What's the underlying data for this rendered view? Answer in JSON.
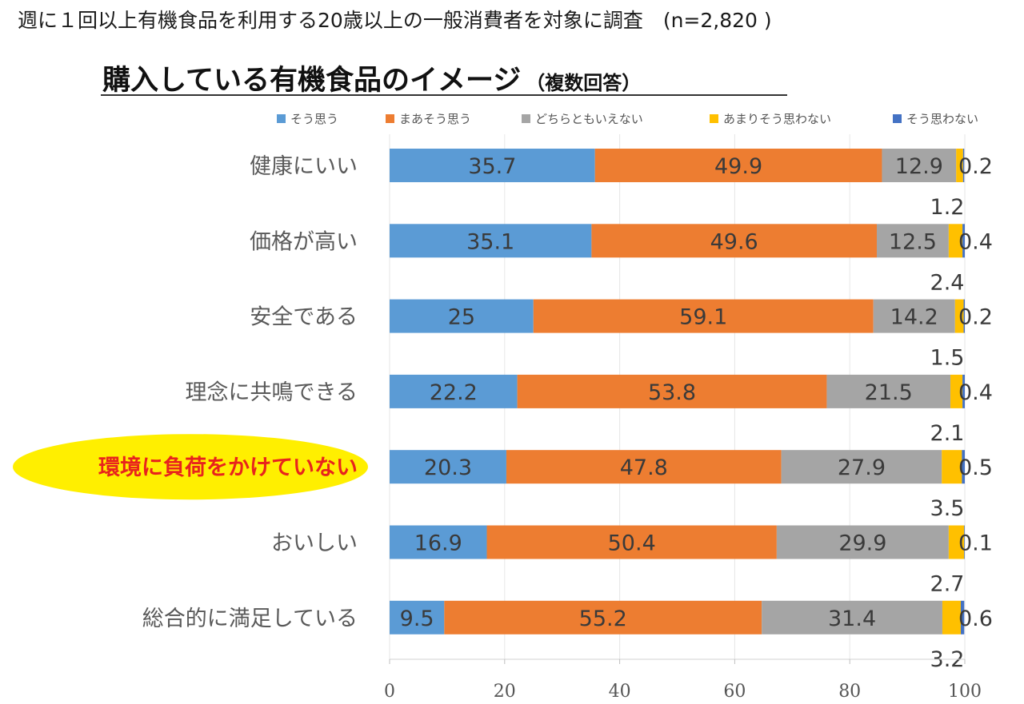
{
  "header": {
    "note": "週に１回以上有機食品を利用する20歳以上の一般消費者を対象に調査　(n=2,820 )",
    "title": "購入している有機食品のイメージ",
    "title_sub": "（複数回答）"
  },
  "chart_data": {
    "type": "bar",
    "orientation": "horizontal",
    "stacked": true,
    "categories": [
      "健康にいい",
      "価格が高い",
      "安全である",
      "理念に共鳴できる",
      "環境に負荷をかけていない",
      "おいしい",
      "総合的に満足している"
    ],
    "highlighted_category": "環境に負荷をかけていない",
    "series": [
      {
        "name": "そう思う",
        "color": "#5b9bd5",
        "values": [
          35.7,
          35.1,
          25,
          22.2,
          20.3,
          16.9,
          9.5
        ]
      },
      {
        "name": "まあそう思う",
        "color": "#ed7d31",
        "values": [
          49.9,
          49.6,
          59.1,
          53.8,
          47.8,
          50.4,
          55.2
        ]
      },
      {
        "name": "どちらともいえない",
        "color": "#a5a5a5",
        "values": [
          12.9,
          12.5,
          14.2,
          21.5,
          27.9,
          29.9,
          31.4
        ]
      },
      {
        "name": "あまりそう思わない",
        "color": "#ffc000",
        "values": [
          1.2,
          2.4,
          1.5,
          2.1,
          3.5,
          2.7,
          3.2
        ]
      },
      {
        "name": "そう思わない",
        "color": "#4472c4",
        "values": [
          0.2,
          0.4,
          0.2,
          0.4,
          0.5,
          0.1,
          0.6
        ]
      }
    ],
    "xlim": [
      0,
      100
    ],
    "xticks": [
      0,
      20,
      40,
      60,
      80,
      100
    ],
    "legend_position": "top",
    "grid": false
  }
}
